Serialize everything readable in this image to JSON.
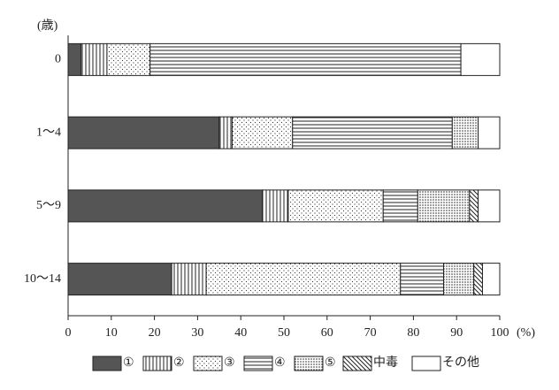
{
  "chart_data": {
    "type": "stacked-barh",
    "ylabel": "(歳)",
    "xlabel": "(%)",
    "categories": [
      "0",
      "1～4",
      "5～9",
      "10～14"
    ],
    "series": [
      {
        "name": "①",
        "color": "#555555",
        "pattern": "solid",
        "values": [
          3,
          35,
          45,
          24
        ]
      },
      {
        "name": "②",
        "color": "#ffffff",
        "pattern": "vertical",
        "values": [
          6,
          3,
          6,
          8
        ]
      },
      {
        "name": "③",
        "color": "#ffffff",
        "pattern": "dots",
        "values": [
          10,
          14,
          22,
          45
        ]
      },
      {
        "name": "④",
        "color": "#ffffff",
        "pattern": "horizontal",
        "values": [
          72,
          37,
          8,
          10
        ]
      },
      {
        "name": "⑤",
        "color": "#ffffff",
        "pattern": "dense-dots",
        "values": [
          0,
          6,
          12,
          7
        ]
      },
      {
        "name": "中毒",
        "color": "#ffffff",
        "pattern": "diagonal",
        "values": [
          0,
          0,
          2,
          2
        ]
      },
      {
        "name": "その他",
        "color": "#ffffff",
        "pattern": "none",
        "values": [
          9,
          5,
          5,
          4
        ]
      }
    ],
    "xlim": [
      0,
      100
    ],
    "xticks": [
      0,
      10,
      20,
      30,
      40,
      50,
      60,
      70,
      80,
      90,
      100
    ]
  }
}
